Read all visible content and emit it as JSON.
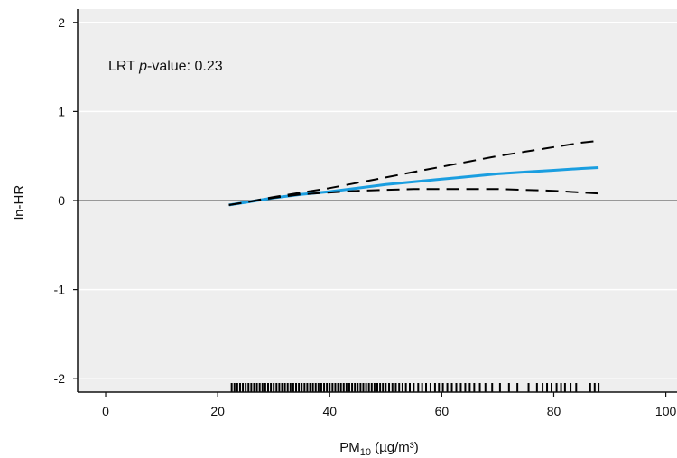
{
  "chart_data": {
    "type": "line",
    "title": "",
    "annotation": {
      "prefix": "LRT ",
      "italic": "p",
      "suffix": "-value: 0.23"
    },
    "xlabel": {
      "main": "PM",
      "sub": "10",
      "rest": " (µg/m³)"
    },
    "ylabel": "ln-HR",
    "xlim": [
      -5,
      102
    ],
    "ylim": [
      -2.15,
      2.15
    ],
    "xticks": [
      0,
      20,
      40,
      60,
      80,
      100
    ],
    "xtick_labels": [
      "0",
      "20",
      "40",
      "60",
      "80",
      "100"
    ],
    "yticks": [
      2,
      1,
      0,
      -1,
      -2
    ],
    "ytick_labels": [
      "2",
      "1",
      "0",
      "-1",
      "-2"
    ],
    "grid": true,
    "background_color": "#eeeeee",
    "grid_color": "#ffffff",
    "series": [
      {
        "role": "estimate",
        "color": "#1a9ee0",
        "style": "solid",
        "x": [
          22,
          25,
          30,
          35,
          40,
          45,
          50,
          55,
          60,
          65,
          70,
          75,
          80,
          85,
          88
        ],
        "y": [
          -0.05,
          -0.02,
          0.03,
          0.07,
          0.1,
          0.14,
          0.18,
          0.21,
          0.24,
          0.27,
          0.3,
          0.32,
          0.34,
          0.36,
          0.37
        ]
      },
      {
        "role": "upper-ci",
        "color": "#000000",
        "style": "dashed",
        "x": [
          22,
          25,
          30,
          35,
          40,
          45,
          50,
          55,
          60,
          65,
          70,
          75,
          80,
          85,
          88
        ],
        "y": [
          -0.05,
          -0.02,
          0.04,
          0.09,
          0.14,
          0.2,
          0.26,
          0.32,
          0.38,
          0.44,
          0.5,
          0.55,
          0.6,
          0.65,
          0.67
        ]
      },
      {
        "role": "lower-ci",
        "color": "#000000",
        "style": "dashed",
        "x": [
          22,
          25,
          30,
          35,
          40,
          45,
          50,
          55,
          60,
          65,
          70,
          75,
          80,
          85,
          88
        ],
        "y": [
          -0.05,
          -0.02,
          0.03,
          0.07,
          0.09,
          0.11,
          0.12,
          0.13,
          0.13,
          0.13,
          0.13,
          0.12,
          0.11,
          0.09,
          0.08
        ]
      }
    ],
    "reference_line": {
      "y": 0,
      "color": "#666666"
    },
    "rug": {
      "color": "#000000",
      "x": [
        22.5,
        23,
        23.5,
        24,
        24.5,
        25,
        25.5,
        26,
        26.5,
        27,
        27.5,
        28,
        28.5,
        29,
        29.5,
        30,
        30.5,
        31,
        31.5,
        32,
        32.5,
        33,
        33.5,
        34,
        34.5,
        35,
        35.5,
        36,
        36.5,
        37,
        37.5,
        38,
        38.5,
        39,
        39.5,
        40,
        40.5,
        41,
        41.5,
        42,
        42.5,
        43,
        43.5,
        44,
        44.5,
        45,
        45.5,
        46,
        46.5,
        47,
        47.5,
        48,
        48.5,
        49,
        49.5,
        50,
        50.6,
        51.2,
        51.8,
        52.4,
        53,
        53.6,
        54.3,
        55,
        55.8,
        56.5,
        57.2,
        58,
        58.8,
        59.5,
        60.2,
        61,
        61.8,
        62.6,
        63.4,
        64.2,
        65,
        65.8,
        66.8,
        67.8,
        69,
        70.4,
        72,
        73.5,
        75.5,
        77,
        78,
        78.8,
        79.6,
        80.5,
        81.3,
        82,
        83,
        84,
        86.5,
        87.3,
        88
      ]
    }
  }
}
